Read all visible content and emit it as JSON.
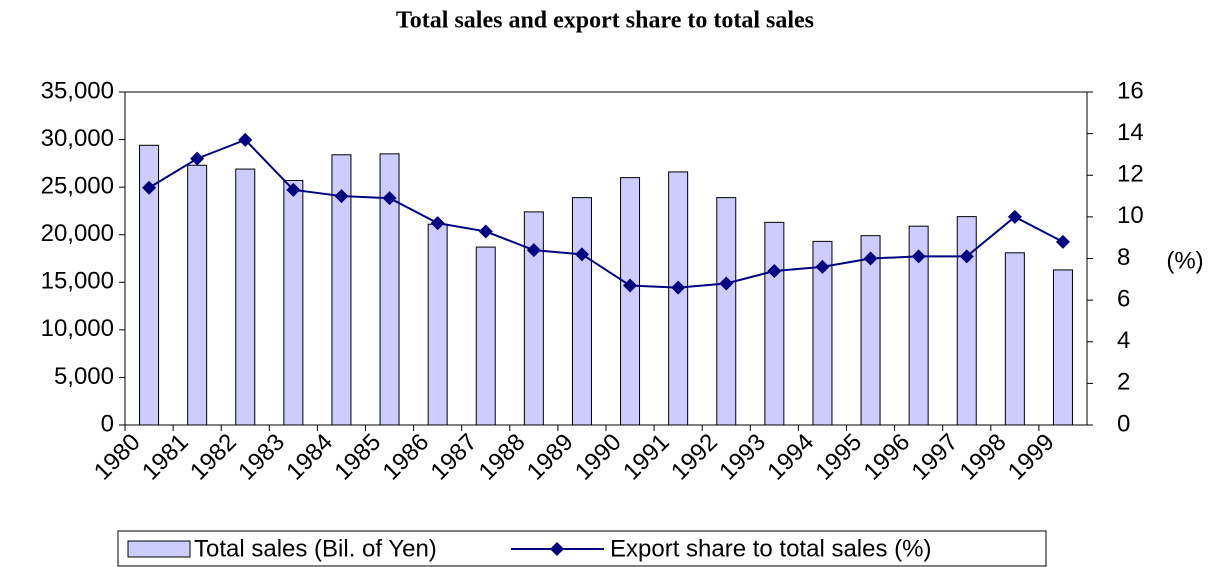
{
  "chart_data": {
    "type": "bar",
    "title": "Total sales and export share to total sales",
    "categories": [
      "1980",
      "1981",
      "1982",
      "1983",
      "1984",
      "1985",
      "1986",
      "1987",
      "1988",
      "1989",
      "1990",
      "1991",
      "1992",
      "1993",
      "1994",
      "1995",
      "1996",
      "1997",
      "1998",
      "1999"
    ],
    "series": [
      {
        "name": "Total sales (Bil. of Yen)",
        "type": "bar",
        "color": "#ccccff",
        "values": [
          29400,
          27300,
          26900,
          25700,
          28400,
          28500,
          21100,
          18700,
          22400,
          23900,
          26000,
          26600,
          23900,
          21300,
          19300,
          19900,
          20900,
          21900,
          18100,
          16300
        ]
      },
      {
        "name": "Export share to total sales (%)",
        "type": "line",
        "axis": "y2",
        "color": "#000080",
        "values": [
          11.4,
          12.8,
          13.7,
          11.3,
          11.0,
          10.9,
          9.7,
          9.3,
          8.4,
          8.2,
          6.7,
          6.6,
          6.8,
          7.4,
          7.6,
          8.0,
          8.1,
          8.1,
          10.0,
          8.8
        ]
      }
    ],
    "ylim": [
      0,
      35000
    ],
    "yticks": [
      0,
      {
        "value": 5000,
        "label": "5,000"
      },
      {
        "value": 10000,
        "label": "10,000"
      },
      {
        "value": 15000,
        "label": "15,000"
      },
      {
        "value": 20000,
        "label": "20,000"
      },
      {
        "value": 25000,
        "label": "25,000"
      },
      {
        "value": 30000,
        "label": "30,000"
      },
      {
        "value": 35000,
        "label": "35,000"
      }
    ],
    "y2lim": [
      0,
      16
    ],
    "y2ticks": [
      0,
      2,
      4,
      6,
      8,
      10,
      12,
      14,
      16
    ],
    "y2_label": "(%)",
    "legend": "bottom"
  }
}
